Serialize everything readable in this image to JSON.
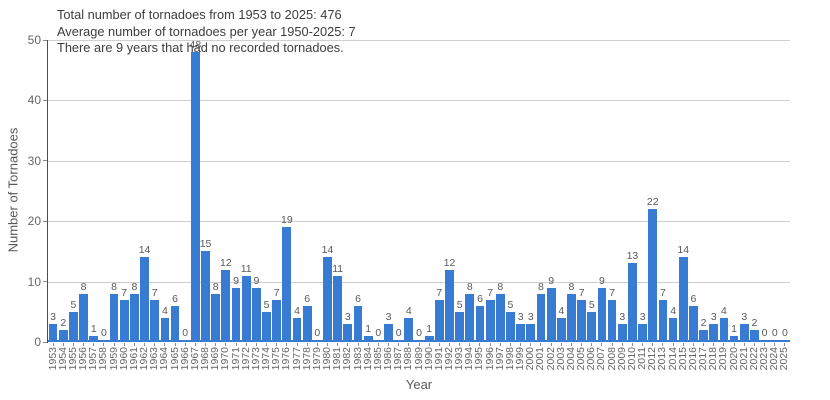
{
  "annotations": {
    "line1": "Total number of tornadoes from 1953 to 2025: 476",
    "line2": "Average number of tornadoes per year 1950-2025: 7",
    "line3": "There are 9 years that had no recorded tornadoes."
  },
  "chart_data": {
    "type": "bar",
    "title": "",
    "xlabel": "Year",
    "ylabel": "Number of Tornadoes",
    "ylim": [
      0,
      50
    ],
    "yticks": [
      0,
      10,
      20,
      30,
      40,
      50
    ],
    "grid": true,
    "legend": "none",
    "bar_color": "#377cd2",
    "categories": [
      "1953",
      "1954",
      "1955",
      "1956",
      "1957",
      "1958",
      "1959",
      "1960",
      "1961",
      "1962",
      "1963",
      "1964",
      "1965",
      "1966",
      "1967",
      "1968",
      "1969",
      "1970",
      "1971",
      "1972",
      "1973",
      "1974",
      "1975",
      "1976",
      "1977",
      "1978",
      "1979",
      "1980",
      "1981",
      "1982",
      "1983",
      "1984",
      "1985",
      "1986",
      "1987",
      "1988",
      "1989",
      "1990",
      "1991",
      "1992",
      "1993",
      "1994",
      "1995",
      "1996",
      "1997",
      "1998",
      "1999",
      "2000",
      "2001",
      "2002",
      "2003",
      "2004",
      "2005",
      "2006",
      "2007",
      "2008",
      "2009",
      "2010",
      "2011",
      "2012",
      "2013",
      "2014",
      "2015",
      "2016",
      "2017",
      "2018",
      "2019",
      "2020",
      "2021",
      "2022",
      "2023",
      "2024",
      "2025"
    ],
    "values": [
      3,
      2,
      5,
      8,
      1,
      0,
      8,
      7,
      8,
      14,
      7,
      4,
      6,
      0,
      48,
      15,
      8,
      12,
      9,
      11,
      9,
      5,
      7,
      19,
      4,
      6,
      0,
      14,
      11,
      3,
      6,
      1,
      0,
      3,
      0,
      4,
      0,
      1,
      7,
      12,
      5,
      8,
      6,
      7,
      8,
      5,
      3,
      3,
      8,
      9,
      4,
      8,
      7,
      5,
      9,
      7,
      3,
      13,
      3,
      22,
      7,
      4,
      14,
      6,
      2,
      3,
      4,
      1,
      3,
      2,
      0,
      0,
      0
    ],
    "value_labels_shown": true
  },
  "colors": {
    "bar": "#377cd2",
    "gridline": "#cfcfcf",
    "axis_spine": "#4d4d4d",
    "tick_mark": "#8c8c8c",
    "tick_label": "#666666",
    "annotation_text": "#3d3d3d",
    "value_label": "#595959",
    "background": "#ffffff"
  }
}
